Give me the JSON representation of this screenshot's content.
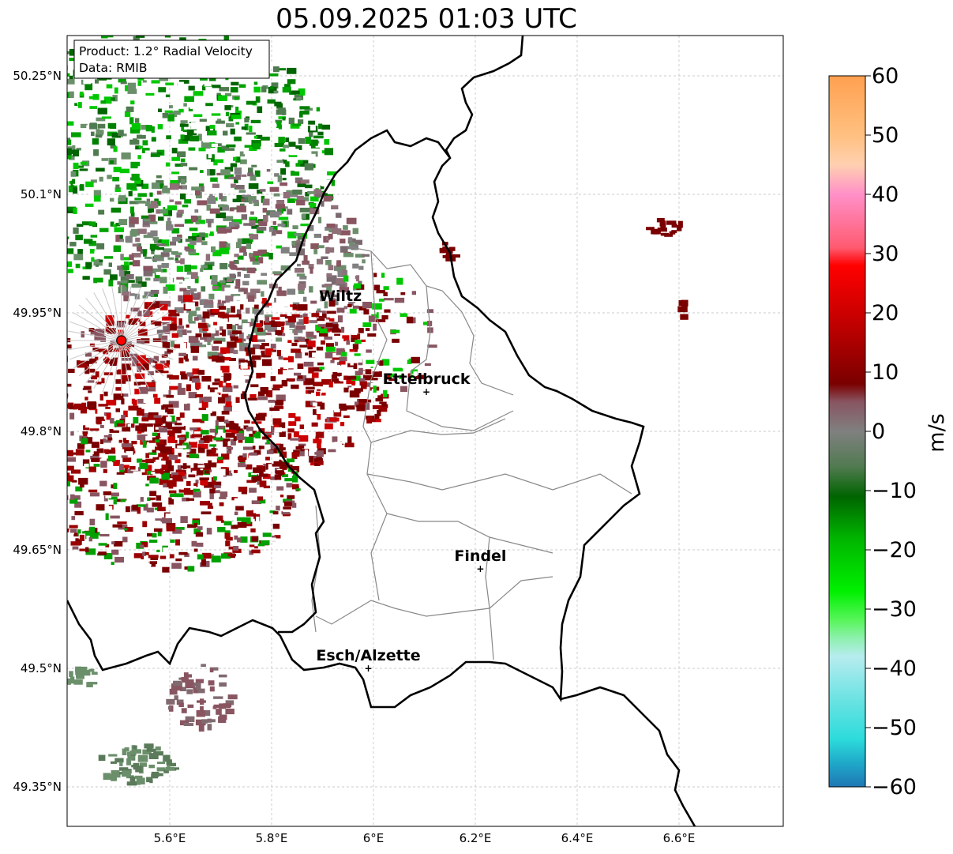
{
  "title": "05.09.2025 01:03 UTC",
  "info_box": {
    "line1": "Product: 1.2° Radial Velocity",
    "line2": "Data: RMIB"
  },
  "map": {
    "lon_range": [
      5.4,
      6.8
    ],
    "lat_range": [
      49.3,
      50.3
    ],
    "lat_ticks": [
      {
        "value": 50.25,
        "label": "50.25°N"
      },
      {
        "value": 50.1,
        "label": "50.1°N"
      },
      {
        "value": 49.95,
        "label": "49.95°N"
      },
      {
        "value": 49.8,
        "label": "49.8°N"
      },
      {
        "value": 49.65,
        "label": "49.65°N"
      },
      {
        "value": 49.5,
        "label": "49.5°N"
      },
      {
        "value": 49.35,
        "label": "49.35°N"
      }
    ],
    "lon_ticks": [
      {
        "value": 5.6,
        "label": "5.6°E"
      },
      {
        "value": 5.8,
        "label": "5.8°E"
      },
      {
        "value": 6.0,
        "label": "6°E"
      },
      {
        "value": 6.2,
        "label": "6.2°E"
      },
      {
        "value": 6.4,
        "label": "6.4°E"
      },
      {
        "value": 6.6,
        "label": "6.6°E"
      }
    ],
    "grid": true,
    "radar_site": {
      "lon": 5.505,
      "lat": 49.915
    },
    "places": [
      {
        "name": "Wiltz",
        "lon": 5.935,
        "lat": 49.955,
        "marker": false
      },
      {
        "name": "Ettelbruck",
        "lon": 6.104,
        "lat": 49.85,
        "marker": true
      },
      {
        "name": "Findel",
        "lon": 6.21,
        "lat": 49.626,
        "marker": true
      },
      {
        "name": "Esch/Alzette",
        "lon": 5.99,
        "lat": 49.5,
        "marker": true
      }
    ]
  },
  "colorbar": {
    "label": "m/s",
    "min": -60,
    "max": 60,
    "ticks": [
      60,
      50,
      40,
      30,
      20,
      10,
      0,
      -10,
      -20,
      -30,
      -40,
      -50,
      -60
    ],
    "tick_labels": [
      "60",
      "50",
      "40",
      "30",
      "20",
      "10",
      "0",
      "−10",
      "−20",
      "−30",
      "−40",
      "−50",
      "−60"
    ],
    "stops": [
      {
        "v": -60,
        "color": "#1f77b4"
      },
      {
        "v": -56,
        "color": "#1fa8c9"
      },
      {
        "v": -52,
        "color": "#2cdbdb"
      },
      {
        "v": -45,
        "color": "#6ee3e3"
      },
      {
        "v": -38,
        "color": "#b7ecef"
      },
      {
        "v": -35,
        "color": "#8ff0b0"
      },
      {
        "v": -32,
        "color": "#5af55e"
      },
      {
        "v": -27,
        "color": "#00f000"
      },
      {
        "v": -18,
        "color": "#00b400"
      },
      {
        "v": -11,
        "color": "#006400"
      },
      {
        "v": -6,
        "color": "#507a50"
      },
      {
        "v": 0,
        "color": "#808080"
      },
      {
        "v": 5,
        "color": "#885561"
      },
      {
        "v": 8,
        "color": "#7a0000"
      },
      {
        "v": 18,
        "color": "#c00000"
      },
      {
        "v": 28,
        "color": "#ff0000"
      },
      {
        "v": 31,
        "color": "#ff5a70"
      },
      {
        "v": 40,
        "color": "#ff90c8"
      },
      {
        "v": 45,
        "color": "#ffd0b0"
      },
      {
        "v": 50,
        "color": "#ffc080"
      },
      {
        "v": 60,
        "color": "#ffa050"
      }
    ]
  }
}
